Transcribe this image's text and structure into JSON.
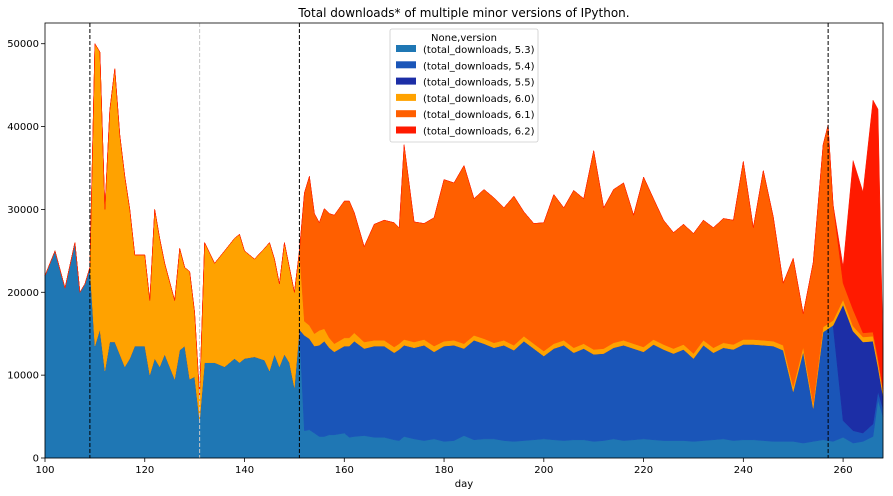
{
  "chart_data": {
    "type": "area",
    "title": "Total downloads* of multiple minor versions of IPython.",
    "xlabel": "day",
    "ylabel": "",
    "xlim": [
      100,
      268
    ],
    "ylim": [
      0,
      52500
    ],
    "xticks": [
      100,
      120,
      140,
      160,
      180,
      200,
      220,
      240,
      260
    ],
    "yticks": [
      0,
      10000,
      20000,
      30000,
      40000,
      50000
    ],
    "grid": false,
    "legend": {
      "placement": "top-center",
      "title": "None,version"
    },
    "vlines_dashed": [
      109,
      151,
      257
    ],
    "vlines_light": [
      131
    ],
    "x": [
      100,
      102,
      104,
      106,
      107,
      108,
      109,
      110,
      111,
      112,
      113,
      114,
      115,
      116,
      117,
      118,
      120,
      121,
      122,
      123,
      124,
      126,
      127,
      128,
      129,
      130,
      131,
      132,
      134,
      136,
      138,
      139,
      140,
      142,
      144,
      145,
      146,
      147,
      148,
      149,
      150,
      151,
      152,
      153,
      154,
      155,
      156,
      157,
      158,
      160,
      161,
      162,
      164,
      166,
      168,
      170,
      171,
      172,
      174,
      176,
      178,
      180,
      182,
      184,
      186,
      188,
      190,
      192,
      194,
      196,
      198,
      200,
      202,
      204,
      206,
      208,
      210,
      212,
      214,
      216,
      218,
      220,
      222,
      224,
      226,
      228,
      230,
      232,
      234,
      236,
      238,
      240,
      242,
      244,
      246,
      248,
      250,
      252,
      254,
      256,
      257,
      258,
      260,
      262,
      264,
      266,
      267,
      268
    ],
    "series": [
      {
        "name": "(total_downloads, 5.3)",
        "color": "#1f77b4",
        "values": [
          22000,
          25000,
          20500,
          26000,
          20000,
          21000,
          23000,
          13500,
          15500,
          10500,
          14000,
          14000,
          12500,
          11000,
          12000,
          13500,
          13500,
          10000,
          12000,
          11000,
          12500,
          9500,
          13000,
          13500,
          9500,
          9800,
          4500,
          11500,
          11500,
          11000,
          12000,
          11500,
          12000,
          12200,
          11800,
          10500,
          12500,
          11000,
          12500,
          11500,
          8500,
          15500,
          3300,
          3400,
          3000,
          2600,
          2600,
          2800,
          2800,
          3000,
          2500,
          2600,
          2700,
          2500,
          2500,
          2200,
          2100,
          2600,
          2300,
          2100,
          2300,
          2000,
          2100,
          2700,
          2200,
          2300,
          2300,
          2100,
          2000,
          2100,
          2200,
          2300,
          2200,
          2100,
          2200,
          2200,
          2000,
          2100,
          2300,
          2100,
          2200,
          2300,
          2200,
          2100,
          2100,
          2100,
          2000,
          2100,
          2200,
          2300,
          2100,
          2200,
          2200,
          2100,
          2000,
          2000,
          2000,
          1800,
          2000,
          2200,
          2100,
          2000,
          2500,
          1800,
          2000,
          2600,
          7000,
          5000
        ]
      },
      {
        "name": "(total_downloads, 5.4)",
        "color": "#1a55b8",
        "values": [
          0,
          0,
          0,
          0,
          0,
          0,
          0,
          0,
          0,
          0,
          0,
          0,
          0,
          0,
          0,
          0,
          0,
          0,
          0,
          0,
          0,
          0,
          0,
          0,
          0,
          0,
          0,
          0,
          0,
          0,
          0,
          0,
          0,
          0,
          0,
          0,
          0,
          0,
          0,
          0,
          0,
          0,
          11500,
          11000,
          10500,
          11000,
          11500,
          10500,
          10000,
          10500,
          11000,
          11500,
          10500,
          11000,
          11000,
          10500,
          11000,
          11000,
          11000,
          11500,
          10500,
          11500,
          11500,
          10500,
          12000,
          11500,
          11000,
          11500,
          11000,
          12000,
          11000,
          10000,
          11000,
          11500,
          10500,
          11000,
          10500,
          10500,
          11000,
          11500,
          11000,
          10500,
          11500,
          11000,
          10500,
          11000,
          10000,
          11500,
          10500,
          11000,
          11000,
          11500,
          11500,
          11500,
          11500,
          11000,
          6000,
          11000,
          4000,
          13000,
          13500,
          14000,
          2000,
          1500,
          1000,
          1500,
          1000,
          1000
        ]
      },
      {
        "name": "(total_downloads, 5.5)",
        "color": "#1c2ea6",
        "values": [
          0,
          0,
          0,
          0,
          0,
          0,
          0,
          0,
          0,
          0,
          0,
          0,
          0,
          0,
          0,
          0,
          0,
          0,
          0,
          0,
          0,
          0,
          0,
          0,
          0,
          0,
          0,
          0,
          0,
          0,
          0,
          0,
          0,
          0,
          0,
          0,
          0,
          0,
          0,
          0,
          0,
          0,
          0,
          0,
          0,
          0,
          0,
          0,
          0,
          0,
          0,
          0,
          0,
          0,
          0,
          0,
          0,
          0,
          0,
          0,
          0,
          0,
          0,
          0,
          0,
          0,
          0,
          0,
          0,
          0,
          0,
          0,
          0,
          0,
          0,
          0,
          0,
          0,
          0,
          0,
          0,
          0,
          0,
          0,
          0,
          0,
          0,
          0,
          0,
          0,
          0,
          0,
          0,
          0,
          0,
          0,
          0,
          0,
          0,
          0,
          0,
          0,
          14000,
          12000,
          11000,
          10000,
          3000,
          1500
        ]
      },
      {
        "name": "(total_downloads, 6.0)",
        "color": "#ffa200",
        "values": [
          0,
          0,
          0,
          0,
          0,
          0,
          0,
          36500,
          33500,
          19500,
          28000,
          33000,
          26500,
          23000,
          18000,
          11000,
          11000,
          9000,
          18000,
          15500,
          11000,
          9500,
          12300,
          9500,
          13000,
          7800,
          3000,
          14500,
          12000,
          14000,
          14500,
          15500,
          13000,
          11800,
          13500,
          15500,
          11500,
          10000,
          13500,
          11500,
          11500,
          9500,
          1700,
          1600,
          1500,
          1800,
          1500,
          1200,
          1000,
          1000,
          1000,
          1000,
          800,
          700,
          700,
          700,
          700,
          700,
          700,
          700,
          700,
          600,
          600,
          600,
          600,
          600,
          600,
          600,
          600,
          600,
          600,
          600,
          600,
          600,
          600,
          600,
          600,
          600,
          600,
          600,
          600,
          600,
          600,
          600,
          600,
          600,
          600,
          600,
          600,
          600,
          600,
          600,
          600,
          600,
          600,
          600,
          600,
          600,
          600,
          600,
          600,
          600,
          600,
          600,
          600,
          600,
          600,
          600
        ]
      },
      {
        "name": "(total_downloads, 6.1)",
        "color": "#ff5f00",
        "values": [
          0,
          0,
          0,
          0,
          0,
          0,
          0,
          0,
          0,
          0,
          0,
          0,
          0,
          0,
          0,
          0,
          0,
          0,
          0,
          0,
          0,
          0,
          0,
          0,
          0,
          0,
          0,
          0,
          0,
          0,
          0,
          0,
          0,
          0,
          0,
          0,
          0,
          0,
          0,
          0,
          0,
          0,
          15500,
          18000,
          14500,
          13000,
          14500,
          15000,
          15500,
          16500,
          16500,
          14500,
          11500,
          14000,
          14500,
          15000,
          14000,
          23500,
          14500,
          14000,
          15500,
          19500,
          19000,
          21500,
          16500,
          18000,
          17500,
          16000,
          18000,
          15000,
          14500,
          15500,
          18000,
          16000,
          19000,
          17500,
          24000,
          17000,
          18500,
          19000,
          15500,
          20500,
          17000,
          15000,
          14000,
          14500,
          14500,
          14500,
          14500,
          15000,
          15000,
          21500,
          13500,
          20500,
          15000,
          7500,
          15500,
          4000,
          17000,
          22000,
          24000,
          14000,
          2000,
          2000,
          500,
          500,
          500,
          200
        ]
      },
      {
        "name": "(total_downloads, 6.2)",
        "color": "#ff1a00",
        "values": [
          0,
          0,
          0,
          0,
          0,
          0,
          0,
          0,
          0,
          0,
          0,
          0,
          0,
          0,
          0,
          0,
          0,
          0,
          0,
          0,
          0,
          0,
          0,
          0,
          0,
          0,
          0,
          0,
          0,
          0,
          0,
          0,
          0,
          0,
          0,
          0,
          0,
          0,
          0,
          0,
          0,
          0,
          0,
          0,
          0,
          0,
          0,
          0,
          0,
          0,
          0,
          0,
          0,
          0,
          0,
          0,
          0,
          0,
          0,
          0,
          0,
          0,
          0,
          0,
          0,
          0,
          0,
          0,
          0,
          0,
          0,
          0,
          0,
          0,
          0,
          0,
          0,
          0,
          0,
          0,
          0,
          0,
          0,
          0,
          0,
          0,
          0,
          0,
          0,
          0,
          0,
          0,
          0,
          0,
          0,
          0,
          0,
          0,
          0,
          0,
          0,
          0,
          2000,
          18000,
          17000,
          28000,
          30000,
          5000
        ]
      }
    ]
  }
}
